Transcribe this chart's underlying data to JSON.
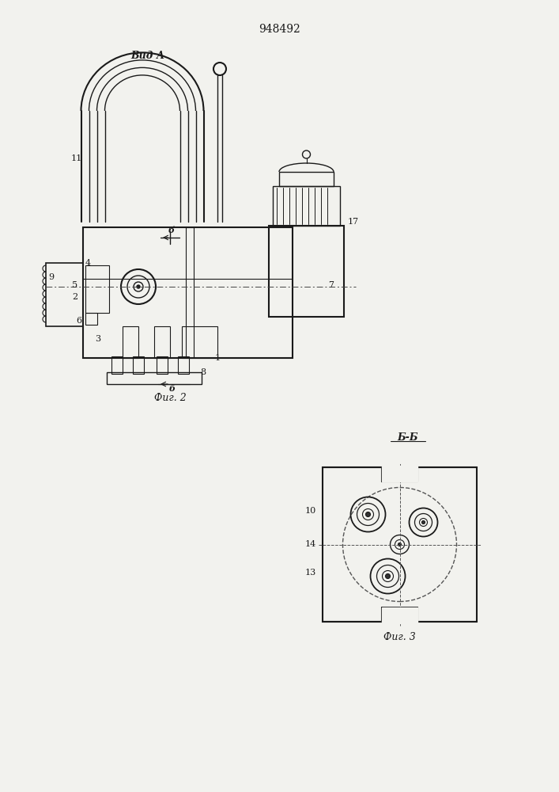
{
  "title": "948492",
  "bg_color": "#f2f2ee",
  "line_color": "#1a1a1a",
  "fig1_label": "Вид А",
  "fig2_label": "Фиг. 2",
  "fig3_label": "Фиг. 3",
  "section_label": "Б-Б"
}
